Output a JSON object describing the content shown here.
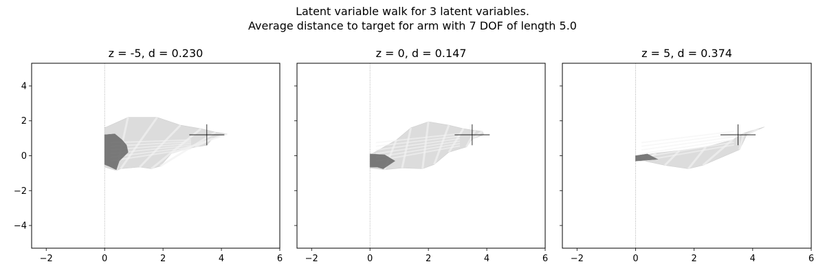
{
  "figure": {
    "title_line1": "Latent variable walk for 3 latent variables.",
    "title_line2": "Average distance to target for arm with 7 DOF of length 5.0"
  },
  "chart_data": [
    {
      "type": "line",
      "title": "z = -5, d = 0.230",
      "xlim": [
        -2.5,
        6
      ],
      "ylim": [
        -5.3,
        5.3
      ],
      "xticks": [
        -2,
        0,
        2,
        4,
        6
      ],
      "yticks": [
        4,
        2,
        0,
        -2,
        -4
      ],
      "show_yticklabels": true,
      "grid": false,
      "base_line": {
        "x": 0,
        "style": "dotted"
      },
      "target": {
        "x": 3.5,
        "y": 1.2,
        "half_width": 0.6,
        "half_height": 0.6
      },
      "arm_envelope": [
        [
          0,
          1.6
        ],
        [
          0.8,
          2.2
        ],
        [
          1.8,
          2.2
        ],
        [
          2.6,
          1.75
        ],
        [
          3.3,
          1.55
        ],
        [
          3.8,
          1.35
        ],
        [
          4.2,
          1.25
        ],
        [
          3.7,
          1.0
        ],
        [
          3.5,
          0.6
        ],
        [
          3.1,
          0.5
        ],
        [
          2.3,
          0.15
        ],
        [
          1.9,
          -0.6
        ],
        [
          1.6,
          -0.75
        ],
        [
          1.2,
          -0.65
        ],
        [
          0.55,
          -0.75
        ],
        [
          0.4,
          -0.85
        ],
        [
          0,
          -0.65
        ]
      ],
      "dark_region": [
        [
          0,
          1.2
        ],
        [
          0.35,
          1.25
        ],
        [
          0.6,
          0.9
        ],
        [
          0.75,
          0.6
        ],
        [
          0.8,
          0.2
        ],
        [
          0.5,
          -0.3
        ],
        [
          0.4,
          -0.8
        ],
        [
          0.15,
          -0.6
        ],
        [
          0,
          -0.5
        ]
      ]
    },
    {
      "type": "line",
      "title": "z = 0, d = 0.147",
      "xlim": [
        -2.5,
        6
      ],
      "ylim": [
        -5.3,
        5.3
      ],
      "xticks": [
        -2,
        0,
        2,
        4,
        6
      ],
      "yticks": [
        4,
        2,
        0,
        -2,
        -4
      ],
      "show_yticklabels": false,
      "grid": false,
      "base_line": {
        "x": 0,
        "style": "dotted"
      },
      "target": {
        "x": 3.5,
        "y": 1.2,
        "half_width": 0.6,
        "half_height": 0.6
      },
      "arm_envelope": [
        [
          0,
          0.05
        ],
        [
          0.9,
          0.9
        ],
        [
          1.4,
          1.6
        ],
        [
          2.0,
          1.95
        ],
        [
          2.7,
          1.75
        ],
        [
          3.2,
          1.55
        ],
        [
          3.6,
          1.45
        ],
        [
          3.85,
          1.4
        ],
        [
          3.9,
          1.2
        ],
        [
          3.5,
          0.95
        ],
        [
          3.3,
          0.5
        ],
        [
          2.7,
          0.2
        ],
        [
          2.2,
          -0.5
        ],
        [
          1.8,
          -0.75
        ],
        [
          1.1,
          -0.7
        ],
        [
          0.5,
          -0.8
        ],
        [
          0,
          -0.7
        ]
      ],
      "dark_region": [
        [
          0,
          0.1
        ],
        [
          0.5,
          0.05
        ],
        [
          0.85,
          -0.3
        ],
        [
          0.45,
          -0.75
        ],
        [
          0.25,
          -0.65
        ],
        [
          0,
          -0.65
        ]
      ]
    },
    {
      "type": "line",
      "title": "z = 5, d = 0.374",
      "xlim": [
        -2.5,
        6
      ],
      "ylim": [
        -5.3,
        5.3
      ],
      "xticks": [
        -2,
        0,
        2,
        4,
        6
      ],
      "yticks": [
        4,
        2,
        0,
        -2,
        -4
      ],
      "show_yticklabels": false,
      "grid": false,
      "base_line": {
        "x": 0,
        "style": "dotted"
      },
      "target": {
        "x": 3.5,
        "y": 1.2,
        "half_width": 0.6,
        "half_height": 0.6
      },
      "arm_envelope": [
        [
          0,
          -0.05
        ],
        [
          0.7,
          0.15
        ],
        [
          1.5,
          0.3
        ],
        [
          2.4,
          0.5
        ],
        [
          3.3,
          0.9
        ],
        [
          3.7,
          1.3
        ],
        [
          4.2,
          1.55
        ],
        [
          4.4,
          1.65
        ],
        [
          3.8,
          1.2
        ],
        [
          3.55,
          0.35
        ],
        [
          2.3,
          -0.55
        ],
        [
          1.8,
          -0.75
        ],
        [
          1.0,
          -0.55
        ],
        [
          0.3,
          -0.3
        ],
        [
          0,
          -0.3
        ]
      ],
      "dark_region": [
        [
          0,
          0.0
        ],
        [
          0.4,
          0.1
        ],
        [
          0.75,
          -0.2
        ],
        [
          0.4,
          -0.25
        ],
        [
          0,
          -0.3
        ]
      ]
    }
  ]
}
